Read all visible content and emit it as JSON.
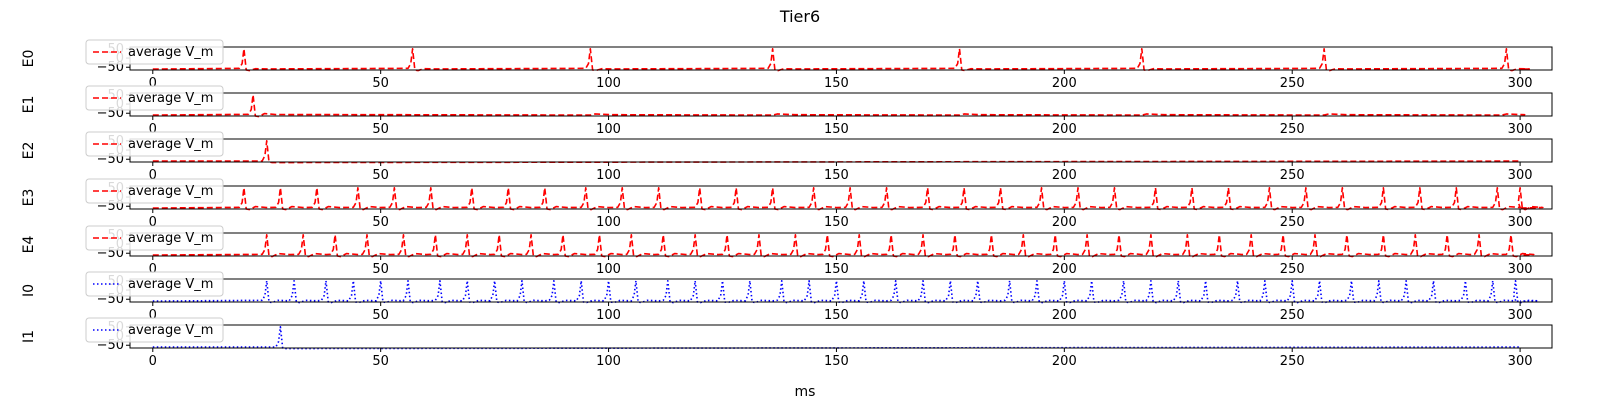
{
  "chart_data": {
    "type": "line",
    "title": "Tier6",
    "xlabel": "ms",
    "xlim": [
      -5,
      307
    ],
    "ylim": [
      -65,
      60
    ],
    "x_ticks": [
      0,
      50,
      100,
      150,
      200,
      250,
      300
    ],
    "y_ticks": [
      50,
      0,
      -50
    ],
    "panels": [
      {
        "ylabel": "E0",
        "legend": "average V_m",
        "color": "#ff0000",
        "linestyle": "dashed",
        "baseline": -60,
        "peak": 50,
        "spike_times": [
          20,
          57,
          96,
          136,
          177,
          217,
          257,
          297
        ],
        "after_bump": 2
      },
      {
        "ylabel": "E1",
        "legend": "average V_m",
        "color": "#ff0000",
        "linestyle": "dashed",
        "baseline": -60,
        "peak": 50,
        "spike_times": [
          22
        ],
        "after_bump": 8,
        "minor_bumps": [
          97,
          137,
          178,
          218,
          258,
          297
        ]
      },
      {
        "ylabel": "E2",
        "legend": "average V_m",
        "color": "#ff0000",
        "linestyle": "dashed",
        "baseline": -60,
        "peak": 50,
        "spike_times": [
          25
        ],
        "after_bump": 0
      },
      {
        "ylabel": "E3",
        "legend": "average V_m",
        "color": "#ff0000",
        "linestyle": "dashed",
        "baseline": -60,
        "peak": 50,
        "spike_times": [
          20,
          28,
          36,
          45,
          53,
          61,
          70,
          78,
          86,
          95,
          103,
          111,
          120,
          128,
          136,
          145,
          153,
          161,
          170,
          178,
          186,
          195,
          203,
          211,
          220,
          228,
          236,
          245,
          253,
          261,
          270,
          278,
          286,
          295,
          300
        ],
        "after_bump": 8
      },
      {
        "ylabel": "E4",
        "legend": "average V_m",
        "color": "#ff0000",
        "linestyle": "dashed",
        "baseline": -60,
        "peak": 50,
        "spike_times": [
          25,
          33,
          40,
          47,
          55,
          62,
          69,
          76,
          83,
          90,
          98,
          105,
          112,
          119,
          126,
          133,
          141,
          148,
          155,
          162,
          169,
          176,
          184,
          191,
          198,
          205,
          212,
          219,
          227,
          234,
          241,
          248,
          255,
          262,
          270,
          277,
          284,
          291,
          298
        ],
        "after_bump": 8
      },
      {
        "ylabel": "I0",
        "legend": "average V_m",
        "color": "#0000ff",
        "linestyle": "dotted",
        "baseline": -60,
        "peak": 50,
        "spike_times": [
          25,
          31,
          38,
          44,
          50,
          56,
          63,
          69,
          75,
          81,
          88,
          94,
          100,
          106,
          113,
          119,
          125,
          131,
          138,
          144,
          150,
          156,
          163,
          169,
          175,
          181,
          188,
          194,
          200,
          206,
          213,
          219,
          225,
          231,
          238,
          244,
          250,
          256,
          263,
          269,
          275,
          281,
          288,
          294,
          299
        ],
        "after_bump": 4
      },
      {
        "ylabel": "I1",
        "legend": "average V_m",
        "color": "#0000ff",
        "linestyle": "dotted",
        "baseline": -60,
        "peak": 50,
        "spike_times": [
          28
        ],
        "after_bump": 0
      }
    ]
  }
}
